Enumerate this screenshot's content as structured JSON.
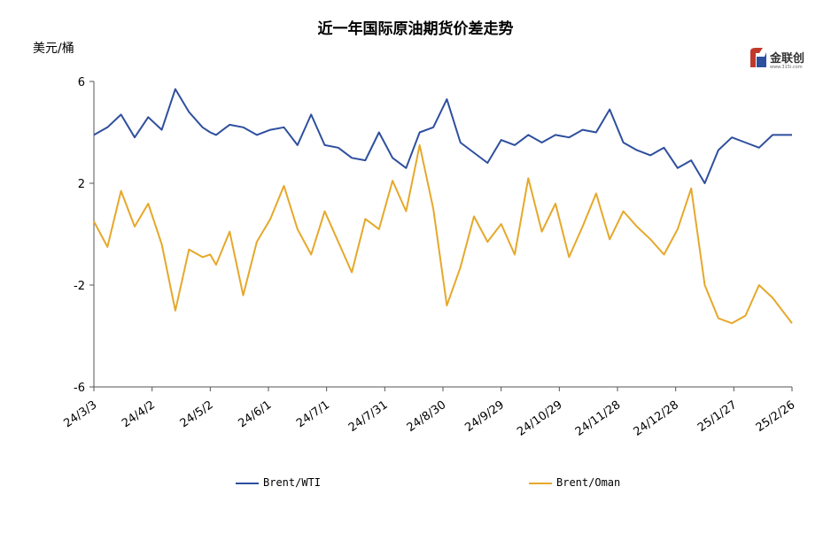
{
  "chart_data": {
    "type": "line",
    "title": "近一年国际原油期货价差走势",
    "ylabel": "美元/桶",
    "ylim": [
      -6,
      6
    ],
    "yticks": [
      6,
      2,
      -2,
      -6
    ],
    "xticks": [
      "24/3/3",
      "24/4/2",
      "24/5/2",
      "24/6/1",
      "24/7/1",
      "24/7/31",
      "24/8/30",
      "24/9/29",
      "24/10/29",
      "24/11/28",
      "24/12/28",
      "25/1/27",
      "25/2/26"
    ],
    "grid": false,
    "legend_position": "bottom",
    "colors": {
      "brent_wti": "#2e4f9e",
      "brent_oman": "#e6a82a"
    },
    "series": [
      {
        "name": "Brent/WTI",
        "x": [
          "24/3/3",
          "24/3/10",
          "24/3/17",
          "24/3/24",
          "24/3/31",
          "24/4/7",
          "24/4/14",
          "24/4/21",
          "24/4/28",
          "24/5/2",
          "24/5/5",
          "24/5/12",
          "24/5/19",
          "24/5/26",
          "24/6/2",
          "24/6/9",
          "24/6/16",
          "24/6/23",
          "24/6/30",
          "24/7/7",
          "24/7/14",
          "24/7/21",
          "24/7/28",
          "24/8/4",
          "24/8/11",
          "24/8/18",
          "24/8/25",
          "24/9/1",
          "24/9/8",
          "24/9/15",
          "24/9/22",
          "24/9/29",
          "24/10/6",
          "24/10/13",
          "24/10/20",
          "24/10/27",
          "24/11/3",
          "24/11/10",
          "24/11/17",
          "24/11/24",
          "24/12/1",
          "24/12/8",
          "24/12/15",
          "24/12/22",
          "24/12/29",
          "25/1/5",
          "25/1/12",
          "25/1/19",
          "25/1/26",
          "25/2/2",
          "25/2/9",
          "25/2/16",
          "25/2/26"
        ],
        "values": [
          3.9,
          4.2,
          4.7,
          3.8,
          4.6,
          4.1,
          5.7,
          4.8,
          4.2,
          4.0,
          3.9,
          4.3,
          4.2,
          3.9,
          4.1,
          4.2,
          3.5,
          4.7,
          3.5,
          3.4,
          3.0,
          2.9,
          4.0,
          3.0,
          2.6,
          4.0,
          4.2,
          5.3,
          3.6,
          3.2,
          2.8,
          3.7,
          3.5,
          3.9,
          3.6,
          3.9,
          3.8,
          4.1,
          4.0,
          4.9,
          3.6,
          3.3,
          3.1,
          3.4,
          2.6,
          2.9,
          2.0,
          3.3,
          3.8,
          3.6,
          3.4,
          3.9,
          3.9
        ]
      },
      {
        "name": "Brent/Oman",
        "x": [
          "24/3/3",
          "24/3/10",
          "24/3/17",
          "24/3/24",
          "24/3/31",
          "24/4/7",
          "24/4/14",
          "24/4/21",
          "24/4/28",
          "24/5/2",
          "24/5/5",
          "24/5/12",
          "24/5/19",
          "24/5/26",
          "24/6/2",
          "24/6/9",
          "24/6/16",
          "24/6/23",
          "24/6/30",
          "24/7/7",
          "24/7/14",
          "24/7/21",
          "24/7/28",
          "24/8/4",
          "24/8/11",
          "24/8/18",
          "24/8/25",
          "24/9/1",
          "24/9/8",
          "24/9/15",
          "24/9/22",
          "24/9/29",
          "24/10/6",
          "24/10/13",
          "24/10/20",
          "24/10/27",
          "24/11/3",
          "24/11/10",
          "24/11/17",
          "24/11/24",
          "24/12/1",
          "24/12/8",
          "24/12/15",
          "24/12/22",
          "24/12/29",
          "25/1/5",
          "25/1/12",
          "25/1/19",
          "25/1/26",
          "25/2/2",
          "25/2/9",
          "25/2/16",
          "25/2/26"
        ],
        "values": [
          0.5,
          -0.5,
          1.7,
          0.3,
          1.2,
          -0.4,
          -3.0,
          -0.6,
          -0.9,
          -0.8,
          -1.2,
          0.1,
          -2.4,
          -0.3,
          0.6,
          1.9,
          0.2,
          -0.8,
          0.9,
          -0.3,
          -1.5,
          0.6,
          0.2,
          2.1,
          0.9,
          3.5,
          1.0,
          -2.8,
          -1.3,
          0.7,
          -0.3,
          0.4,
          -0.8,
          2.2,
          0.1,
          1.2,
          -0.9,
          0.3,
          1.6,
          -0.2,
          0.9,
          0.3,
          -0.2,
          -0.8,
          0.2,
          1.8,
          -2.0,
          -3.3,
          -3.5,
          -3.2,
          -2.0,
          -2.5,
          -3.5
        ]
      }
    ]
  },
  "logo": {
    "brand_text": "金联创",
    "sub_text": "www.315i.com"
  }
}
